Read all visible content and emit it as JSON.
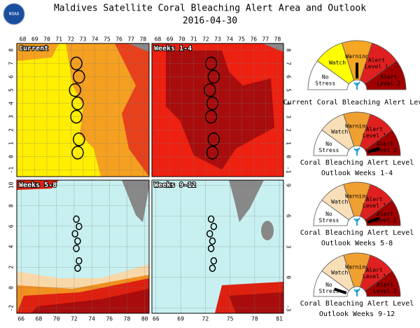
{
  "header": {
    "title": "Maldives Satellite Coral Bleaching Alert Area and Outlook",
    "date": "2016-04-30",
    "logo": "NOAA"
  },
  "panels": [
    {
      "label": "Current",
      "x_ticks": [
        68,
        69,
        70,
        71,
        72,
        73,
        74,
        75,
        76,
        77,
        78
      ],
      "y_ticks": [
        8,
        7,
        6,
        5,
        4,
        3,
        2,
        1,
        0,
        -1
      ]
    },
    {
      "label": "Weeks 1-4",
      "x_ticks": [
        68,
        69,
        70,
        71,
        72,
        73,
        74,
        75,
        76,
        77,
        78
      ],
      "y_ticks": [
        8,
        7,
        6,
        5,
        4,
        3,
        2,
        1,
        0,
        -1
      ]
    },
    {
      "label": "Weeks 5-8",
      "x_ticks": [
        66,
        68,
        70,
        72,
        74,
        76,
        78,
        80
      ],
      "y_ticks": [
        10,
        8,
        6,
        4,
        2,
        0,
        -2
      ]
    },
    {
      "label": "Weeks 9-12",
      "x_ticks": [
        66,
        69,
        72,
        75,
        78,
        81
      ],
      "y_ticks": [
        9,
        6,
        3,
        0,
        -3
      ]
    }
  ],
  "alert_levels": [
    "No Stress",
    "Watch",
    "Warning",
    "Alert Level 1",
    "Alert Level 2"
  ],
  "gauges": [
    {
      "caption": [
        "Current Coral Bleaching Alert Level"
      ],
      "level": 2
    },
    {
      "caption": [
        "Coral Bleaching Alert Level",
        "Outlook Weeks 1-4"
      ],
      "level": 4
    },
    {
      "caption": [
        "Coral Bleaching Alert Level",
        "Outlook Weeks 5-8"
      ],
      "level": 4
    },
    {
      "caption": [
        "Coral Bleaching Alert Level",
        "Outlook Weeks 9-12"
      ],
      "level": 0
    }
  ]
}
